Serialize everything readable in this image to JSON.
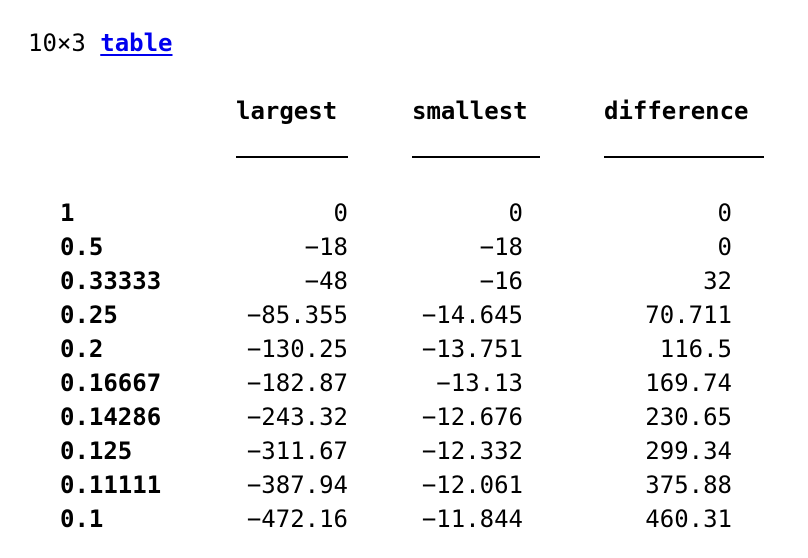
{
  "summary": {
    "size": "10×3",
    "class_link": "table"
  },
  "table": {
    "columns": [
      "largest",
      "smallest",
      "difference"
    ],
    "rows": [
      {
        "name": "1",
        "values": [
          "0",
          "0",
          "0"
        ]
      },
      {
        "name": "0.5",
        "values": [
          "−18",
          "−18",
          "0"
        ]
      },
      {
        "name": "0.33333",
        "values": [
          "−48",
          "−16",
          "32"
        ]
      },
      {
        "name": "0.25",
        "values": [
          "−85.355",
          "−14.645",
          "70.711"
        ]
      },
      {
        "name": "0.2",
        "values": [
          "−130.25",
          "−13.751",
          "116.5"
        ]
      },
      {
        "name": "0.16667",
        "values": [
          "−182.87",
          "−13.13",
          "169.74"
        ]
      },
      {
        "name": "0.14286",
        "values": [
          "−243.32",
          "−12.676",
          "230.65"
        ]
      },
      {
        "name": "0.125",
        "values": [
          "−311.67",
          "−12.332",
          "299.34"
        ]
      },
      {
        "name": "0.11111",
        "values": [
          "−387.94",
          "−12.061",
          "375.88"
        ]
      },
      {
        "name": "0.1",
        "values": [
          "−472.16",
          "−11.844",
          "460.31"
        ]
      }
    ]
  }
}
